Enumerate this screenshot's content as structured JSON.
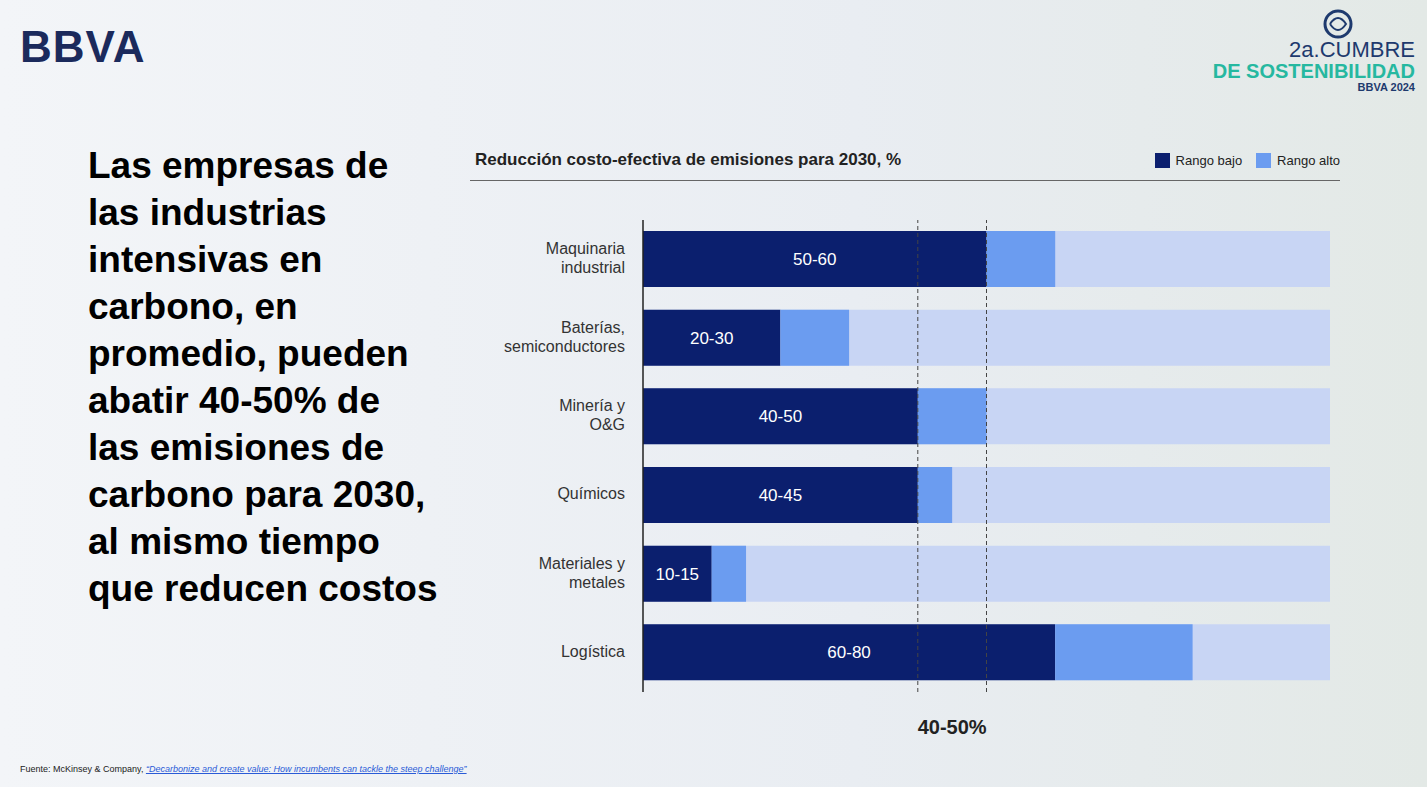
{
  "logo": "BBVA",
  "event_lines": [
    "2a.CUMBRE",
    "DE SOSTENIBILIDAD",
    "BBVA 2024"
  ],
  "headline": "Las empresas de las industrias intensivas en carbono, en promedio, pueden abatir 40-50% de las emisiones de carbono para 2030, al mismo tiempo que reducen costos",
  "source": "Fuente: McKinsey & Company,",
  "source_link": "“Decarbonize and create value: How incumbents can tackle the steep challenge”",
  "chart_data": {
    "type": "bar",
    "title": "Reducción costo-efectiva de emisiones para 2030, %",
    "orientation": "horizontal",
    "stacked": true,
    "data_labels": true,
    "tick_labels": "y",
    "grid": false,
    "legend": "top-right",
    "categories": [
      "Maquinaria industrial",
      "Baterías, semiconductores",
      "Minería y O&G",
      "Químicos",
      "Materiales y metales",
      "Logística"
    ],
    "series": [
      {
        "name": "Rango bajo",
        "color": "#0b1f6e",
        "values": [
          50,
          20,
          40,
          40,
          10,
          60
        ],
        "value_labels": [
          "50-60",
          "20-30",
          "40-50",
          "40-45",
          "10-15",
          "60-80"
        ]
      },
      {
        "name": "Rango alto",
        "color": "#6b9cf0",
        "values": [
          10,
          10,
          10,
          5,
          5,
          20
        ]
      }
    ],
    "xlim": [
      0,
      100
    ],
    "xticks": [],
    "reference_lines": [
      40,
      50
    ],
    "reference_label": "40-50%"
  }
}
